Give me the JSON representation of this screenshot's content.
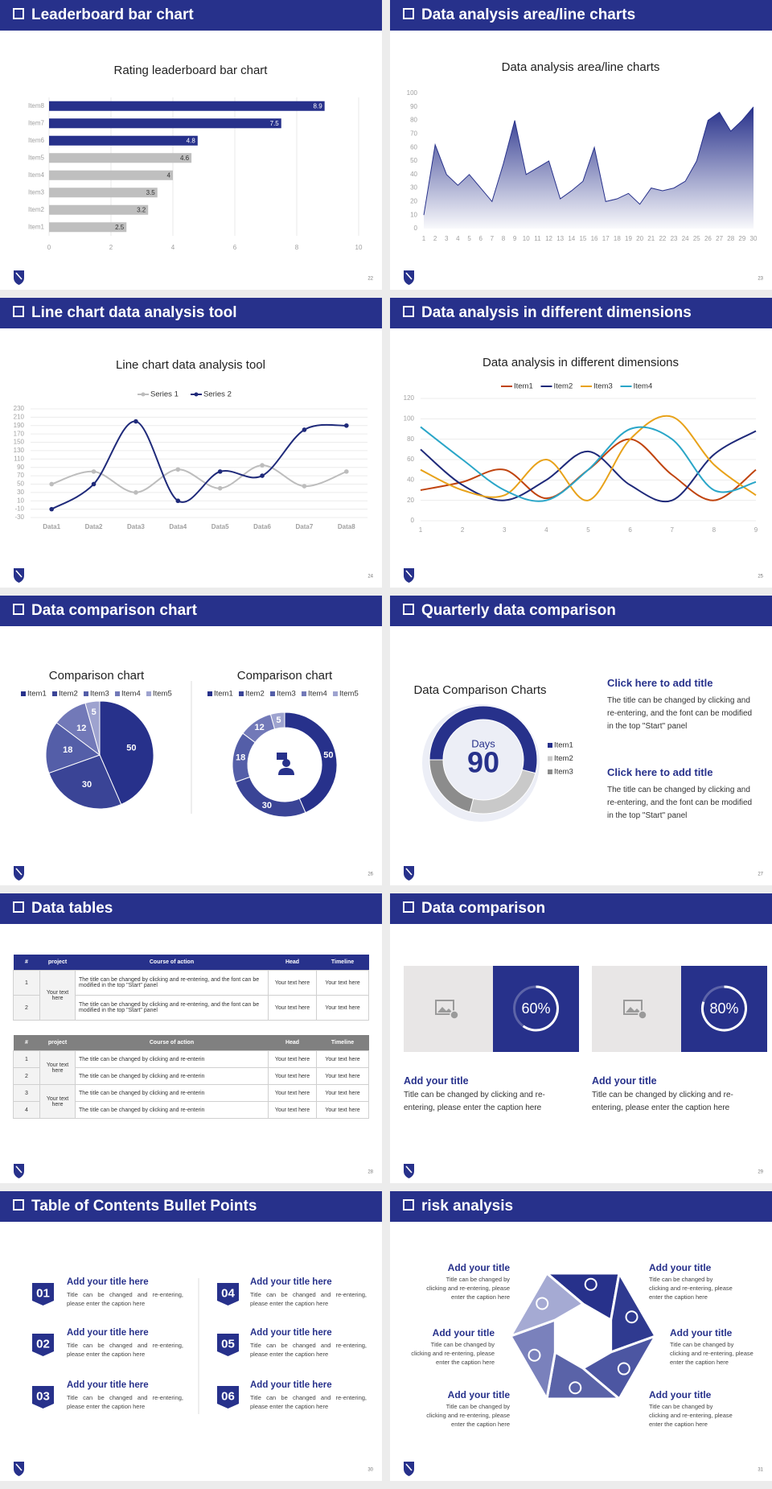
{
  "slides": [
    {
      "title": "Leaderboard bar chart",
      "page": 22,
      "chart": {
        "type": "bar",
        "orientation": "horizontal",
        "title": "Rating leaderboard bar chart",
        "categories": [
          "Item1",
          "Item2",
          "Item3",
          "Item4",
          "Item5",
          "Item6",
          "Item7",
          "Item8"
        ],
        "values": [
          2.5,
          3.2,
          3.5,
          4,
          4.6,
          4.8,
          7.5,
          8.9
        ],
        "colors": [
          "#bfbfbf",
          "#bfbfbf",
          "#bfbfbf",
          "#bfbfbf",
          "#bfbfbf",
          "#27318b",
          "#27318b",
          "#27318b"
        ],
        "xlim": [
          0,
          10
        ],
        "xticks": [
          0,
          2,
          4,
          6,
          8,
          10
        ],
        "grid": true
      }
    },
    {
      "title": "Data analysis area/line charts",
      "page": 23,
      "chart": {
        "type": "area",
        "title": "Data analysis area/line charts",
        "categories": [
          "1",
          "2",
          "3",
          "4",
          "5",
          "6",
          "7",
          "8",
          "9",
          "10",
          "11",
          "12",
          "13",
          "14",
          "15",
          "16",
          "17",
          "18",
          "19",
          "20",
          "21",
          "22",
          "23",
          "24",
          "25",
          "26",
          "27",
          "28",
          "29",
          "30"
        ],
        "values": [
          10,
          62,
          40,
          32,
          40,
          30,
          20,
          48,
          80,
          40,
          45,
          50,
          22,
          28,
          35,
          60,
          20,
          22,
          26,
          18,
          30,
          28,
          30,
          35,
          50,
          80,
          86,
          72,
          80,
          90
        ],
        "color": "#27318b",
        "ylim": [
          0,
          100
        ],
        "yticks": [
          0,
          10,
          20,
          30,
          40,
          50,
          60,
          70,
          80,
          90,
          100
        ],
        "grid": false
      }
    },
    {
      "title": "Line chart data analysis tool",
      "page": 24,
      "chart": {
        "type": "line",
        "title": "Line chart data analysis tool",
        "smooth": true,
        "markers": true,
        "categories": [
          "Data1",
          "Data2",
          "Data3",
          "Data4",
          "Data5",
          "Data6",
          "Data7",
          "Data8"
        ],
        "series": [
          {
            "name": "Series 1",
            "color": "#bdbdbd",
            "values": [
              50,
              80,
              30,
              85,
              40,
              95,
              45,
              80
            ]
          },
          {
            "name": "Series 2",
            "color": "#1f2a7a",
            "values": [
              -10,
              50,
              200,
              10,
              80,
              70,
              180,
              190
            ]
          }
        ],
        "ylim": [
          -30,
          230
        ],
        "yticks": [
          -30,
          -10,
          10,
          30,
          50,
          70,
          90,
          110,
          130,
          150,
          170,
          190,
          210,
          230
        ],
        "grid": true
      }
    },
    {
      "title": "Data analysis in different dimensions",
      "page": 25,
      "chart": {
        "type": "line",
        "title": "Data analysis in different dimensions",
        "smooth": true,
        "markers": false,
        "categories": [
          "1",
          "2",
          "3",
          "4",
          "5",
          "6",
          "7",
          "8",
          "9"
        ],
        "series": [
          {
            "name": "Item1",
            "color": "#c0440f",
            "values": [
              30,
              38,
              50,
              22,
              50,
              80,
              45,
              20,
              50
            ]
          },
          {
            "name": "Item2",
            "color": "#1f2a7a",
            "values": [
              70,
              35,
              20,
              40,
              68,
              35,
              20,
              65,
              88
            ]
          },
          {
            "name": "Item3",
            "color": "#e8a21a",
            "values": [
              50,
              30,
              25,
              60,
              20,
              80,
              102,
              55,
              25
            ]
          },
          {
            "name": "Item4",
            "color": "#2aa6c8",
            "values": [
              92,
              60,
              30,
              20,
              50,
              90,
              80,
              30,
              38
            ]
          }
        ],
        "ylim": [
          0,
          120
        ],
        "yticks": [
          0,
          20,
          40,
          60,
          80,
          100,
          120
        ],
        "grid": true
      }
    },
    {
      "title": "Data comparison chart",
      "page": 26,
      "charts": [
        {
          "type": "pie",
          "title": "Comparison chart",
          "legend": "top",
          "data_labels": true,
          "categories": [
            "Item1",
            "Item2",
            "Item3",
            "Item4",
            "Item5"
          ],
          "values": [
            50,
            30,
            18,
            12,
            5
          ],
          "colors": [
            "#27318b",
            "#3a4496",
            "#545ea8",
            "#7279b8",
            "#9ea3cf"
          ]
        },
        {
          "type": "donut",
          "title": "Comparison chart",
          "legend": "top",
          "data_labels": true,
          "categories": [
            "Item1",
            "Item2",
            "Item3",
            "Item4",
            "Item5"
          ],
          "values": [
            50,
            30,
            18,
            12,
            5
          ],
          "colors": [
            "#27318b",
            "#3a4496",
            "#545ea8",
            "#7279b8",
            "#9ea3cf"
          ]
        }
      ]
    },
    {
      "title": "Quarterly data comparison",
      "page": 27,
      "chart": {
        "type": "donut",
        "title": "Data Comparison Charts",
        "legend": "right",
        "data_labels": false,
        "center_label": "Days",
        "center_value": 90,
        "categories": [
          "Item1",
          "Item2",
          "Item3"
        ],
        "values": [
          54,
          25,
          21
        ],
        "colors": [
          "#27318b",
          "#c9c9c9",
          "#8c8c8c"
        ]
      },
      "panels": [
        {
          "title": "Click here to add title",
          "text": "The title can be changed by clicking and re-entering, and the font can be modified in the top \"Start\" panel"
        },
        {
          "title": "Click here to add title",
          "text": "The title can be changed by clicking and re-entering, and the font can be modified in the top \"Start\" panel"
        }
      ]
    },
    {
      "title": "Data tables",
      "page": 28,
      "tables": [
        {
          "header": [
            "#",
            "project",
            "Course of action",
            "Head",
            "Timeline"
          ],
          "header_color": "#27318b",
          "groups": [
            {
              "project": "Your text here",
              "rows": [
                [
                  1,
                  "The title can be changed by clicking and re-entering, and the font can be modified in the top \"Start\" panel",
                  "Your text here",
                  "Your text here"
                ],
                [
                  2,
                  "The title can be changed by clicking and re-entering, and the font can be modified in the top \"Start\" panel",
                  "Your text here",
                  "Your text here"
                ]
              ]
            }
          ]
        },
        {
          "header": [
            "#",
            "project",
            "Course of action",
            "Head",
            "Timeline"
          ],
          "header_color": "#808080",
          "groups": [
            {
              "project": "Your text here",
              "rows": [
                [
                  1,
                  "The title can be changed by clicking and re-enterin",
                  "Your text here",
                  "Your text here"
                ],
                [
                  2,
                  "The title can be changed by clicking and re-enterin",
                  "Your text here",
                  "Your text here"
                ]
              ]
            },
            {
              "project": "Your text here",
              "rows": [
                [
                  3,
                  "The title can be changed by clicking and re-enterin",
                  "Your text here",
                  "Your text here"
                ],
                [
                  4,
                  "The title can be changed by clicking and re-enterin",
                  "Your text here",
                  "Your text here"
                ]
              ]
            }
          ]
        }
      ]
    },
    {
      "title": "Data comparison",
      "page": 29,
      "cards": [
        {
          "value": 60,
          "label": "60%",
          "title": "Add your title",
          "text": "Title can be changed by clicking and re-entering, please enter the caption here"
        },
        {
          "value": 80,
          "label": "80%",
          "title": "Add your title",
          "text": "Title can be changed by clicking and re-entering, please enter the caption here"
        }
      ]
    },
    {
      "title": "Table of Contents Bullet Points",
      "page": 30,
      "toc": [
        {
          "number": "01",
          "title": "Add your title here",
          "text": "Title can be changed and re-entering, please enter the caption here"
        },
        {
          "number": "02",
          "title": "Add your title here",
          "text": "Title can be changed and re-entering, please enter the caption here"
        },
        {
          "number": "03",
          "title": "Add your title here",
          "text": "Title can be changed and re-entering, please enter the caption here"
        },
        {
          "number": "04",
          "title": "Add your title here",
          "text": "Title can be changed and re-entering, please enter the caption here"
        },
        {
          "number": "05",
          "title": "Add your title here",
          "text": "Title can be changed and re-entering, please enter the caption here"
        },
        {
          "number": "06",
          "title": "Add your title here",
          "text": "Title can be changed and re-entering, please enter the caption here"
        }
      ]
    },
    {
      "title": "risk analysis",
      "page": 31,
      "risks": [
        {
          "title": "Add your title",
          "text": "Title can be changed by clicking and re-entering, please enter the caption here"
        },
        {
          "title": "Add your title",
          "text": "Title can be changed by clicking and re-entering, please enter the caption here"
        },
        {
          "title": "Add your title",
          "text": "Title can be changed by clicking and re-entering, please enter the caption here"
        },
        {
          "title": "Add your title",
          "text": "Title can be changed by clicking and re-entering, please enter the caption here"
        },
        {
          "title": "Add your title",
          "text": "Title can be changed by clicking and re-entering, please enter the caption here"
        },
        {
          "title": "Add your title",
          "text": "Title can be changed by clicking and re-entering, please enter the caption here"
        }
      ]
    }
  ]
}
